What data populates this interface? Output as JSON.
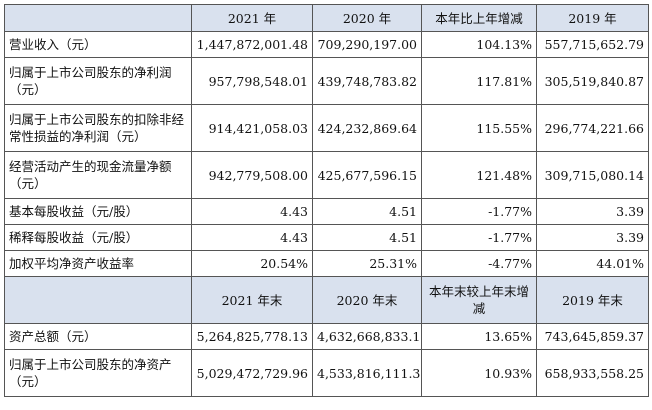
{
  "header1": {
    "label": "",
    "c1": "2021 年",
    "c2": "2020 年",
    "c3": "本年比上年增减",
    "c4": "2019 年"
  },
  "rows1": [
    {
      "label": "营业收入（元）",
      "c1": "1,447,872,001.48",
      "c2": "709,290,197.00",
      "c3": "104.13%",
      "c4": "557,715,652.79"
    },
    {
      "label": "归属于上市公司股东的净利润（元）",
      "c1": "957,798,548.01",
      "c2": "439,748,783.82",
      "c3": "117.81%",
      "c4": "305,519,840.87"
    },
    {
      "label": "归属于上市公司股东的扣除非经常性损益的净利润（元）",
      "c1": "914,421,058.03",
      "c2": "424,232,869.64",
      "c3": "115.55%",
      "c4": "296,774,221.66"
    },
    {
      "label": "经营活动产生的现金流量净额（元）",
      "c1": "942,779,508.00",
      "c2": "425,677,596.15",
      "c3": "121.48%",
      "c4": "309,715,080.14"
    },
    {
      "label": "基本每股收益（元/股）",
      "c1": "4.43",
      "c2": "4.51",
      "c3": "-1.77%",
      "c4": "3.39"
    },
    {
      "label": "稀释每股收益（元/股）",
      "c1": "4.43",
      "c2": "4.51",
      "c3": "-1.77%",
      "c4": "3.39"
    },
    {
      "label": "加权平均净资产收益率",
      "c1": "20.54%",
      "c2": "25.31%",
      "c3": "-4.77%",
      "c4": "44.01%"
    }
  ],
  "header2": {
    "label": "",
    "c1": "2021 年末",
    "c2": "2020 年末",
    "c3": "本年末较上年末增减",
    "c4": "2019 年末"
  },
  "rows2": [
    {
      "label": "资产总额（元）",
      "c1": "5,264,825,778.13",
      "c2": "4,632,668,833.13",
      "c3": "13.65%",
      "c4": "743,645,859.37"
    },
    {
      "label": "归属于上市公司股东的净资产（元）",
      "c1": "5,029,472,729.96",
      "c2": "4,533,816,111.30",
      "c3": "10.93%",
      "c4": "658,933,558.25"
    }
  ]
}
